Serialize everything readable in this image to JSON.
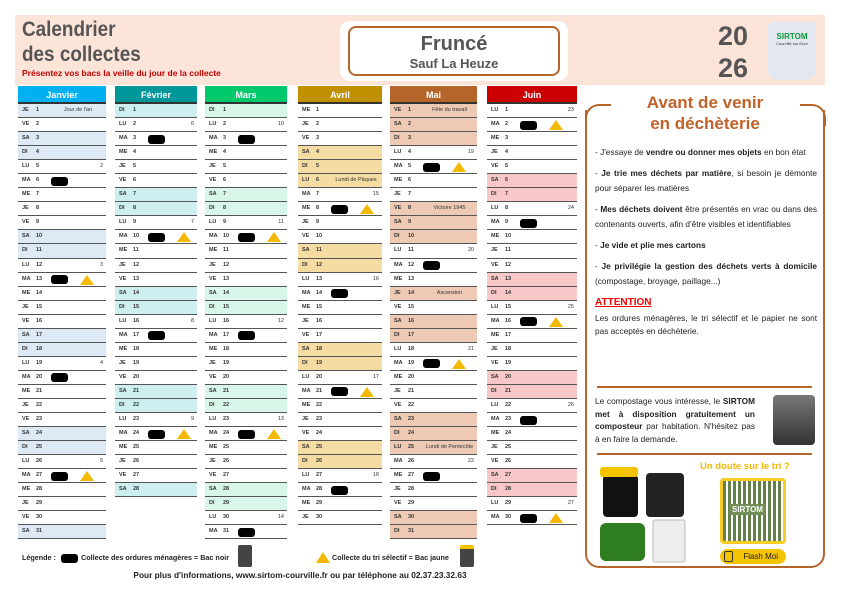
{
  "header": {
    "title_line1": "Calendrier",
    "title_line2": "des collectes",
    "notice": "Présentez vos bacs la veille du jour de la collecte",
    "town": "Fruncé",
    "town_exception": "Sauf La Heuze",
    "year_top": "20",
    "year_bottom": "26",
    "logo_text": "SIRTOM",
    "logo_sub": "Courville sur Eure"
  },
  "months": [
    {
      "name": "Janvier",
      "color": "#00b0f0",
      "shade": "#dde9f5",
      "days": [
        [
          "JE",
          1,
          "",
          "Jour de l'an"
        ],
        [
          "VE",
          2
        ],
        [
          "SA",
          3
        ],
        [
          "DI",
          4
        ],
        [
          "LU",
          5,
          "2"
        ],
        [
          "MA",
          6,
          "",
          "",
          1
        ],
        [
          "ME",
          7
        ],
        [
          "JE",
          8
        ],
        [
          "VE",
          9
        ],
        [
          "SA",
          10
        ],
        [
          "DI",
          11
        ],
        [
          "LU",
          12,
          "3"
        ],
        [
          "MA",
          13,
          "",
          "",
          1,
          1
        ],
        [
          "ME",
          14
        ],
        [
          "JE",
          15
        ],
        [
          "VE",
          16
        ],
        [
          "SA",
          17
        ],
        [
          "DI",
          18
        ],
        [
          "LU",
          19,
          "4"
        ],
        [
          "MA",
          20,
          "",
          "",
          1
        ],
        [
          "ME",
          21
        ],
        [
          "JE",
          22
        ],
        [
          "VE",
          23
        ],
        [
          "SA",
          24
        ],
        [
          "DI",
          25
        ],
        [
          "LU",
          26,
          "5"
        ],
        [
          "MA",
          27,
          "",
          "",
          1,
          1
        ],
        [
          "ME",
          28
        ],
        [
          "JE",
          29
        ],
        [
          "VE",
          30
        ],
        [
          "SA",
          31
        ]
      ]
    },
    {
      "name": "Février",
      "color": "#00979b",
      "shade": "#cdeff0",
      "days": [
        [
          "DI",
          1
        ],
        [
          "LU",
          2,
          "6"
        ],
        [
          "MA",
          3,
          "",
          "",
          1
        ],
        [
          "ME",
          4
        ],
        [
          "JE",
          5
        ],
        [
          "VE",
          6
        ],
        [
          "SA",
          7
        ],
        [
          "DI",
          8
        ],
        [
          "LU",
          9,
          "7"
        ],
        [
          "MA",
          10,
          "",
          "",
          1,
          1
        ],
        [
          "ME",
          11
        ],
        [
          "JE",
          12
        ],
        [
          "VE",
          13
        ],
        [
          "SA",
          14
        ],
        [
          "DI",
          15
        ],
        [
          "LU",
          16,
          "8"
        ],
        [
          "MA",
          17,
          "",
          "",
          1
        ],
        [
          "ME",
          18
        ],
        [
          "JE",
          19
        ],
        [
          "VE",
          20
        ],
        [
          "SA",
          21
        ],
        [
          "DI",
          22
        ],
        [
          "LU",
          23,
          "9"
        ],
        [
          "MA",
          24,
          "",
          "",
          1,
          1
        ],
        [
          "ME",
          25
        ],
        [
          "JE",
          26
        ],
        [
          "VE",
          27
        ],
        [
          "SA",
          28
        ]
      ]
    },
    {
      "name": "Mars",
      "color": "#00c96b",
      "shade": "#d8f7e8",
      "days": [
        [
          "DI",
          1
        ],
        [
          "LU",
          2,
          "10"
        ],
        [
          "MA",
          3,
          "",
          "",
          1
        ],
        [
          "ME",
          4
        ],
        [
          "JE",
          5
        ],
        [
          "VE",
          6
        ],
        [
          "SA",
          7
        ],
        [
          "DI",
          8
        ],
        [
          "LU",
          9,
          "11"
        ],
        [
          "MA",
          10,
          "",
          "",
          1,
          1
        ],
        [
          "ME",
          11
        ],
        [
          "JE",
          12
        ],
        [
          "VE",
          13
        ],
        [
          "SA",
          14
        ],
        [
          "DI",
          15
        ],
        [
          "LU",
          16,
          "12"
        ],
        [
          "MA",
          17,
          "",
          "",
          1
        ],
        [
          "ME",
          18
        ],
        [
          "JE",
          19
        ],
        [
          "VE",
          20
        ],
        [
          "SA",
          21
        ],
        [
          "DI",
          22
        ],
        [
          "LU",
          23,
          "13"
        ],
        [
          "MA",
          24,
          "",
          "",
          1,
          1
        ],
        [
          "ME",
          25
        ],
        [
          "JE",
          26
        ],
        [
          "VE",
          27
        ],
        [
          "SA",
          28
        ],
        [
          "DI",
          29
        ],
        [
          "LU",
          30,
          "14"
        ],
        [
          "MA",
          31,
          "",
          "",
          1
        ]
      ]
    },
    {
      "name": "Avril",
      "color": "#c09000",
      "shade": "#f5dca3",
      "days": [
        [
          "ME",
          1
        ],
        [
          "JE",
          2
        ],
        [
          "VE",
          3
        ],
        [
          "SA",
          4
        ],
        [
          "DI",
          5
        ],
        [
          "LU",
          6,
          "",
          "Lundi de Pâques"
        ],
        [
          "MA",
          7,
          "15"
        ],
        [
          "ME",
          8,
          "",
          "",
          1,
          1
        ],
        [
          "JE",
          9
        ],
        [
          "VE",
          10
        ],
        [
          "SA",
          11
        ],
        [
          "DI",
          12
        ],
        [
          "LU",
          13,
          "16"
        ],
        [
          "MA",
          14,
          "",
          "",
          1
        ],
        [
          "ME",
          15
        ],
        [
          "JE",
          16
        ],
        [
          "VE",
          17
        ],
        [
          "SA",
          18
        ],
        [
          "DI",
          19
        ],
        [
          "LU",
          20,
          "17"
        ],
        [
          "MA",
          21,
          "",
          "",
          1,
          1
        ],
        [
          "ME",
          22
        ],
        [
          "JE",
          23
        ],
        [
          "VE",
          24
        ],
        [
          "SA",
          25
        ],
        [
          "DI",
          26
        ],
        [
          "LU",
          27,
          "18"
        ],
        [
          "MA",
          28,
          "",
          "",
          1
        ],
        [
          "ME",
          29
        ],
        [
          "JE",
          30
        ]
      ]
    },
    {
      "name": "Mai",
      "color": "#b5652a",
      "shade": "#eecab5",
      "days": [
        [
          "VE",
          1,
          "",
          "Fête du travail"
        ],
        [
          "SA",
          2
        ],
        [
          "DI",
          3
        ],
        [
          "LU",
          4,
          "19"
        ],
        [
          "MA",
          5,
          "",
          "",
          1,
          1
        ],
        [
          "ME",
          6
        ],
        [
          "JE",
          7
        ],
        [
          "VE",
          8,
          "",
          "Victoire 1945"
        ],
        [
          "SA",
          9
        ],
        [
          "DI",
          10
        ],
        [
          "LU",
          11,
          "20"
        ],
        [
          "MA",
          12,
          "",
          "",
          1
        ],
        [
          "ME",
          13
        ],
        [
          "JE",
          14,
          "",
          "Ascension"
        ],
        [
          "VE",
          15
        ],
        [
          "SA",
          16
        ],
        [
          "DI",
          17
        ],
        [
          "LU",
          18,
          "21"
        ],
        [
          "MA",
          19,
          "",
          "",
          1,
          1
        ],
        [
          "ME",
          20
        ],
        [
          "JE",
          21
        ],
        [
          "VE",
          22
        ],
        [
          "SA",
          23
        ],
        [
          "DI",
          24
        ],
        [
          "LU",
          25,
          "",
          "Lundi de Pentecôte"
        ],
        [
          "MA",
          26,
          "22"
        ],
        [
          "ME",
          27,
          "",
          "",
          1
        ],
        [
          "JE",
          28
        ],
        [
          "VE",
          29
        ],
        [
          "SA",
          30
        ],
        [
          "DI",
          31
        ]
      ]
    },
    {
      "name": "Juin",
      "color": "#cc0000",
      "shade": "#f8c8c8",
      "days": [
        [
          "LU",
          1,
          "23"
        ],
        [
          "MA",
          2,
          "",
          "",
          1,
          1
        ],
        [
          "ME",
          3
        ],
        [
          "JE",
          4
        ],
        [
          "VE",
          5
        ],
        [
          "SA",
          6
        ],
        [
          "DI",
          7
        ],
        [
          "LU",
          8,
          "24"
        ],
        [
          "MA",
          9,
          "",
          "",
          1
        ],
        [
          "ME",
          10
        ],
        [
          "JE",
          11
        ],
        [
          "VE",
          12
        ],
        [
          "SA",
          13
        ],
        [
          "DI",
          14
        ],
        [
          "LU",
          15,
          "25"
        ],
        [
          "MA",
          16,
          "",
          "",
          1,
          1
        ],
        [
          "ME",
          17
        ],
        [
          "JE",
          18
        ],
        [
          "VE",
          19
        ],
        [
          "SA",
          20
        ],
        [
          "DI",
          21
        ],
        [
          "LU",
          22,
          "26"
        ],
        [
          "MA",
          23,
          "",
          "",
          1
        ],
        [
          "ME",
          24
        ],
        [
          "JE",
          25
        ],
        [
          "VE",
          26
        ],
        [
          "SA",
          27
        ],
        [
          "DI",
          28
        ],
        [
          "LU",
          29,
          "27"
        ],
        [
          "MA",
          30,
          "",
          "",
          1,
          1
        ]
      ]
    }
  ],
  "panel": {
    "title_line1": "Avant de venir",
    "title_line2": "en déchèterie",
    "tips": [
      {
        "pre": "- J'essaye de ",
        "bold": "vendre ou donner mes objets",
        "post": " en bon état"
      },
      {
        "pre": "- ",
        "bold": "Je trie mes déchets par matière",
        "post": ", si besoin je démonte pour séparer les matières"
      },
      {
        "pre": "- ",
        "bold": "Mes déchets doivent",
        "post": " être présentés en vrac ou dans des contenants ouverts, afin d'être visibles et identifiables"
      },
      {
        "pre": "-  ",
        "bold": "Je vide et plie mes cartons",
        "post": ""
      },
      {
        "pre": "- ",
        "bold": "Je privilégie la gestion des déchets verts à domicile",
        "post": " (compostage, broyage, paillage...)"
      }
    ],
    "attention_label": "ATTENTION",
    "attention_text": "Les ordures ménagères, le tri sélectif et le papier ne sont pas acceptés en déchèterie.",
    "compost_pre": "Le compostage vous intéresse, le ",
    "compost_bold": "SIRTOM met à disposition gratuitement un composteur",
    "compost_post": " par habitation. N'hésitez pas à en faire la demande.",
    "doute": "Un doute sur le tri ?",
    "qr_label": "SIRTOM",
    "flash": "Flash Moi"
  },
  "legend": {
    "label": "Légende :",
    "om": "Collecte des ordures ménagères = Bac noir",
    "tri": "Collecte du tri sélectif = Bac jaune"
  },
  "footer": "Pour plus d'informations, www.sirtom-courville.fr ou par téléphone au 02.37.23.32.63"
}
